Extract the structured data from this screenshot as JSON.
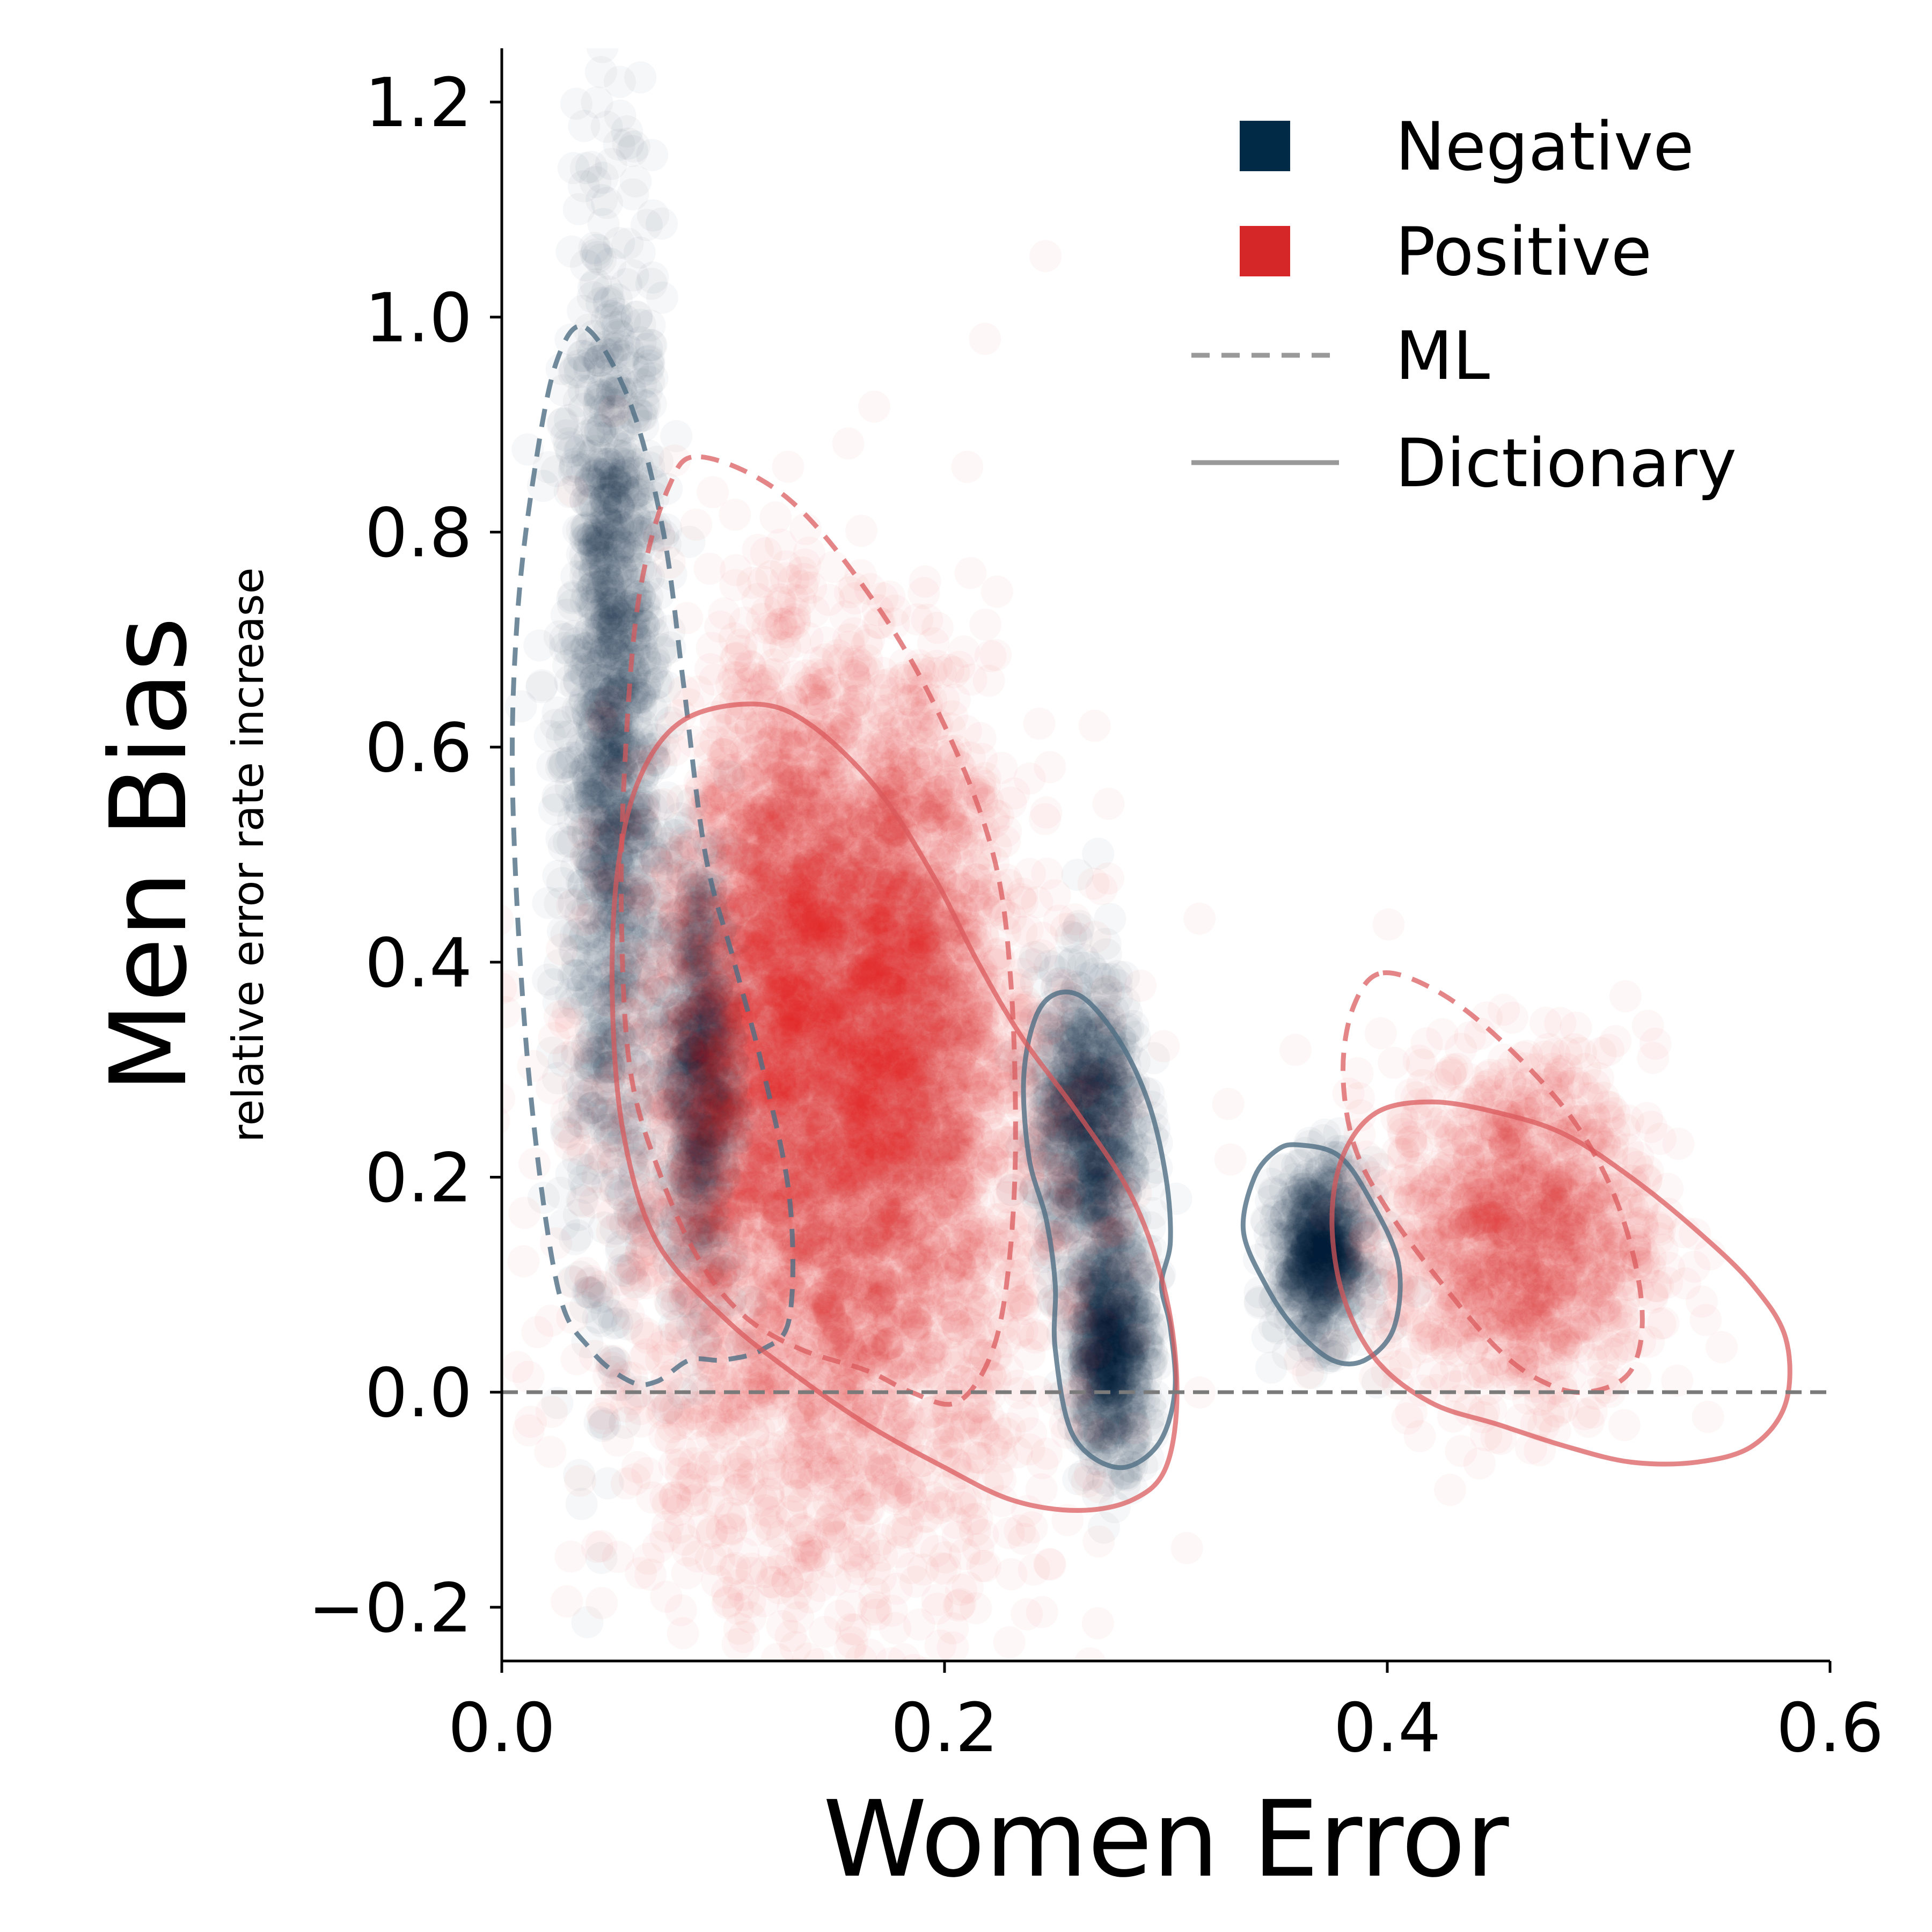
{
  "chart_data": {
    "type": "scatter",
    "xlabel": "Women Error",
    "ylabel": "Men Bias",
    "ylabel_sub": "relative error rate increase",
    "xlim": [
      0.0,
      0.6
    ],
    "ylim": [
      -0.25,
      1.25
    ],
    "x_ticks": [
      0.0,
      0.2,
      0.4,
      0.6
    ],
    "x_tick_labels": [
      "0.0",
      "0.2",
      "0.4",
      "0.6"
    ],
    "y_ticks": [
      -0.2,
      0.0,
      0.2,
      0.4,
      0.6,
      0.8,
      1.0,
      1.2
    ],
    "y_tick_labels": [
      "−0.2",
      "0.0",
      "0.2",
      "0.4",
      "0.6",
      "0.8",
      "1.0",
      "1.2"
    ],
    "reference_line": {
      "y": 0.0,
      "style": "dashed",
      "color": "#7a7a7a"
    },
    "grid": false,
    "legend": {
      "placement": "top-right",
      "entries": [
        {
          "label": "Negative",
          "kind": "square",
          "color": "#002a45"
        },
        {
          "label": "Positive",
          "kind": "square",
          "color": "#d62728"
        },
        {
          "label": "ML",
          "kind": "dashed-line",
          "color": "#999999"
        },
        {
          "label": "Dictionary",
          "kind": "solid-line",
          "color": "#999999"
        }
      ]
    },
    "colors": {
      "negative": "#002a45",
      "positive": "#d62728",
      "reference": "#7a7a7a"
    },
    "series": [
      {
        "name": "Negative",
        "method": "ML",
        "clusters": [
          {
            "cx": 0.05,
            "cy": 0.6,
            "sx": 0.011,
            "sy": 0.24
          },
          {
            "cx": 0.09,
            "cy": 0.3,
            "sx": 0.008,
            "sy": 0.1
          },
          {
            "cx": 0.265,
            "cy": 0.25,
            "sx": 0.012,
            "sy": 0.07
          },
          {
            "cx": 0.37,
            "cy": 0.13,
            "sx": 0.01,
            "sy": 0.04
          },
          {
            "cx": 0.275,
            "cy": 0.04,
            "sx": 0.009,
            "sy": 0.05
          }
        ],
        "density_contour": [
          [
            0.038,
            0.99
          ],
          [
            0.058,
            0.92
          ],
          [
            0.073,
            0.8
          ],
          [
            0.082,
            0.66
          ],
          [
            0.092,
            0.5
          ],
          [
            0.105,
            0.4
          ],
          [
            0.118,
            0.3
          ],
          [
            0.13,
            0.18
          ],
          [
            0.13,
            0.07
          ],
          [
            0.118,
            0.04
          ],
          [
            0.1,
            0.03
          ],
          [
            0.085,
            0.03
          ],
          [
            0.07,
            0.01
          ],
          [
            0.058,
            0.01
          ],
          [
            0.04,
            0.04
          ],
          [
            0.025,
            0.1
          ],
          [
            0.012,
            0.3
          ],
          [
            0.005,
            0.55
          ],
          [
            0.007,
            0.72
          ],
          [
            0.015,
            0.86
          ],
          [
            0.025,
            0.96
          ]
        ]
      },
      {
        "name": "Negative",
        "method": "Dictionary",
        "density_contour_regions": [
          [
            [
              0.26,
              0.37
            ],
            [
              0.278,
              0.33
            ],
            [
              0.292,
              0.27
            ],
            [
              0.3,
              0.2
            ],
            [
              0.302,
              0.14
            ],
            [
              0.298,
              0.1
            ],
            [
              0.302,
              0.06
            ],
            [
              0.304,
              0.0
            ],
            [
              0.296,
              -0.05
            ],
            [
              0.278,
              -0.07
            ],
            [
              0.258,
              -0.04
            ],
            [
              0.25,
              0.04
            ],
            [
              0.25,
              0.1
            ],
            [
              0.246,
              0.16
            ],
            [
              0.238,
              0.22
            ],
            [
              0.236,
              0.3
            ],
            [
              0.244,
              0.36
            ]
          ],
          [
            [
              0.36,
              0.23
            ],
            [
              0.378,
              0.22
            ],
            [
              0.392,
              0.18
            ],
            [
              0.405,
              0.12
            ],
            [
              0.403,
              0.06
            ],
            [
              0.39,
              0.03
            ],
            [
              0.375,
              0.03
            ],
            [
              0.358,
              0.06
            ],
            [
              0.345,
              0.1
            ],
            [
              0.335,
              0.15
            ],
            [
              0.34,
              0.2
            ],
            [
              0.35,
              0.225
            ]
          ]
        ]
      },
      {
        "name": "Positive",
        "method": "ML",
        "clusters": [
          {
            "cx": 0.13,
            "cy": 0.42,
            "sx": 0.022,
            "sy": 0.14
          },
          {
            "cx": 0.18,
            "cy": 0.38,
            "sx": 0.02,
            "sy": 0.14
          },
          {
            "cx": 0.15,
            "cy": 0.2,
            "sx": 0.05,
            "sy": 0.2
          },
          {
            "cx": 0.46,
            "cy": 0.15,
            "sx": 0.03,
            "sy": 0.08
          }
        ],
        "density_contour_regions": [
          [
            [
              0.09,
              0.87
            ],
            [
              0.13,
              0.83
            ],
            [
              0.17,
              0.73
            ],
            [
              0.2,
              0.62
            ],
            [
              0.222,
              0.5
            ],
            [
              0.23,
              0.38
            ],
            [
              0.232,
              0.22
            ],
            [
              0.228,
              0.1
            ],
            [
              0.22,
              0.03
            ],
            [
              0.205,
              -0.01
            ],
            [
              0.185,
              0.0
            ],
            [
              0.165,
              0.02
            ],
            [
              0.135,
              0.04
            ],
            [
              0.11,
              0.07
            ],
            [
              0.09,
              0.12
            ],
            [
              0.072,
              0.2
            ],
            [
              0.058,
              0.3
            ],
            [
              0.054,
              0.45
            ],
            [
              0.056,
              0.6
            ],
            [
              0.062,
              0.74
            ],
            [
              0.075,
              0.84
            ]
          ],
          [
            [
              0.398,
              0.39
            ],
            [
              0.425,
              0.37
            ],
            [
              0.455,
              0.32
            ],
            [
              0.485,
              0.25
            ],
            [
              0.505,
              0.17
            ],
            [
              0.515,
              0.08
            ],
            [
              0.51,
              0.02
            ],
            [
              0.49,
              0.0
            ],
            [
              0.47,
              0.01
            ],
            [
              0.45,
              0.04
            ],
            [
              0.425,
              0.1
            ],
            [
              0.4,
              0.17
            ],
            [
              0.385,
              0.23
            ],
            [
              0.38,
              0.3
            ],
            [
              0.385,
              0.36
            ]
          ]
        ]
      },
      {
        "name": "Positive",
        "method": "Dictionary",
        "density_contour_regions": [
          [
            [
              0.115,
              0.64
            ],
            [
              0.14,
              0.62
            ],
            [
              0.17,
              0.56
            ],
            [
              0.195,
              0.48
            ],
            [
              0.215,
              0.4
            ],
            [
              0.235,
              0.33
            ],
            [
              0.26,
              0.26
            ],
            [
              0.285,
              0.18
            ],
            [
              0.3,
              0.09
            ],
            [
              0.305,
              0.0
            ],
            [
              0.3,
              -0.07
            ],
            [
              0.285,
              -0.1
            ],
            [
              0.26,
              -0.11
            ],
            [
              0.23,
              -0.1
            ],
            [
              0.2,
              -0.07
            ],
            [
              0.165,
              -0.03
            ],
            [
              0.13,
              0.02
            ],
            [
              0.1,
              0.07
            ],
            [
              0.07,
              0.14
            ],
            [
              0.055,
              0.24
            ],
            [
              0.05,
              0.36
            ],
            [
              0.052,
              0.48
            ],
            [
              0.062,
              0.57
            ],
            [
              0.082,
              0.625
            ]
          ],
          [
            [
              0.42,
              0.27
            ],
            [
              0.45,
              0.26
            ],
            [
              0.48,
              0.24
            ],
            [
              0.51,
              0.2
            ],
            [
              0.54,
              0.15
            ],
            [
              0.565,
              0.1
            ],
            [
              0.58,
              0.05
            ],
            [
              0.58,
              -0.01
            ],
            [
              0.565,
              -0.05
            ],
            [
              0.54,
              -0.065
            ],
            [
              0.51,
              -0.065
            ],
            [
              0.48,
              -0.05
            ],
            [
              0.45,
              -0.03
            ],
            [
              0.42,
              -0.01
            ],
            [
              0.395,
              0.03
            ],
            [
              0.38,
              0.09
            ],
            [
              0.375,
              0.16
            ],
            [
              0.38,
              0.22
            ],
            [
              0.395,
              0.26
            ]
          ]
        ]
      }
    ]
  }
}
